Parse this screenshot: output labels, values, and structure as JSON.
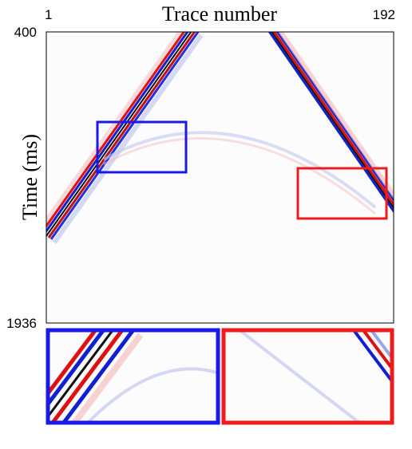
{
  "chart_data": {
    "type": "image",
    "xlabel": "Trace number",
    "ylabel": "Time (ms)",
    "xlim": [
      1,
      192
    ],
    "ylim": [
      1936,
      400
    ],
    "xticks": [
      1,
      192
    ],
    "yticks": [
      400,
      1936
    ],
    "grid": false
  }
}
